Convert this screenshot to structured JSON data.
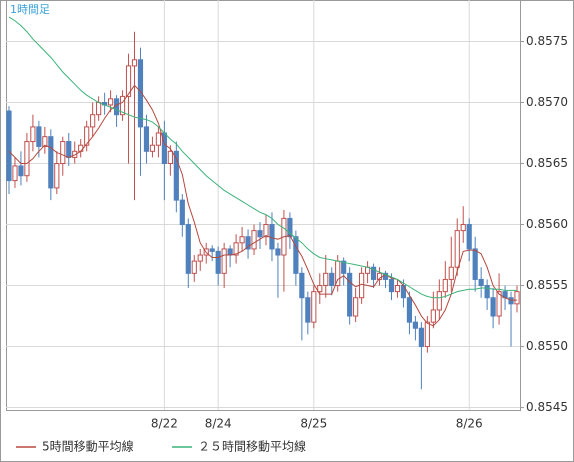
{
  "chart_data": {
    "type": "candlestick",
    "title": "1時間足",
    "categories": [
      null,
      null,
      null,
      null,
      null,
      null,
      null,
      null,
      null,
      null,
      null,
      null,
      null,
      null,
      null,
      null,
      null,
      null,
      null,
      null,
      null,
      null,
      null,
      null,
      null,
      null,
      "8/22",
      null,
      null,
      null,
      null,
      null,
      null,
      null,
      null,
      "8/24",
      null,
      null,
      null,
      null,
      null,
      null,
      null,
      null,
      null,
      null,
      null,
      null,
      null,
      null,
      null,
      "8/25",
      null,
      null,
      null,
      null,
      null,
      null,
      null,
      null,
      null,
      null,
      null,
      null,
      null,
      null,
      null,
      null,
      null,
      null,
      null,
      null,
      null,
      null,
      null,
      null,
      null,
      "8/26",
      null,
      null,
      null,
      null,
      null,
      null,
      null,
      null
    ],
    "open": [
      0.85693,
      0.85636,
      0.85648,
      0.8564,
      0.85668,
      0.8568,
      0.85664,
      0.85672,
      0.8563,
      0.8565,
      0.85668,
      0.85655,
      0.8566,
      0.85665,
      0.8568,
      0.8569,
      0.857,
      0.85698,
      0.85703,
      0.8569,
      0.85705,
      0.8573,
      0.85735,
      0.8568,
      0.8566,
      0.85665,
      0.85675,
      0.8565,
      0.8566,
      0.8562,
      0.856,
      0.8556,
      0.8557,
      0.85575,
      0.8558,
      0.85578,
      0.8556,
      0.8558,
      0.85575,
      0.85585,
      0.8559,
      0.8558,
      0.85595,
      0.8559,
      0.856,
      0.8558,
      0.85575,
      0.85605,
      0.8559,
      0.8556,
      0.8554,
      0.8552,
      0.85545,
      0.8555,
      0.8556,
      0.8555,
      0.8557,
      0.8556,
      0.85525,
      0.8554,
      0.8556,
      0.85565,
      0.85555,
      0.8556,
      0.85555,
      0.85545,
      0.8555,
      0.8554,
      0.8552,
      0.85515,
      0.855,
      0.8552,
      0.8553,
      0.85545,
      0.85555,
      0.85565,
      0.85595,
      0.856,
      0.8558,
      0.85555,
      0.8555,
      0.8554,
      0.85525,
      0.85545,
      0.8554,
      0.85535
    ],
    "high": [
      0.85697,
      0.85655,
      0.8566,
      0.85675,
      0.8569,
      0.85685,
      0.8568,
      0.85678,
      0.8566,
      0.85672,
      0.85675,
      0.85668,
      0.8567,
      0.85685,
      0.857,
      0.85705,
      0.85708,
      0.8571,
      0.85706,
      0.8571,
      0.8574,
      0.85758,
      0.85745,
      0.8569,
      0.85672,
      0.8568,
      0.85685,
      0.85665,
      0.85668,
      0.85625,
      0.85605,
      0.85575,
      0.8558,
      0.85585,
      0.85583,
      0.85582,
      0.85585,
      0.85583,
      0.85592,
      0.85598,
      0.85596,
      0.856,
      0.85602,
      0.85608,
      0.8561,
      0.85585,
      0.85612,
      0.8561,
      0.85595,
      0.85565,
      0.85545,
      0.8555,
      0.8556,
      0.85575,
      0.85565,
      0.85575,
      0.85573,
      0.85565,
      0.85548,
      0.85565,
      0.8557,
      0.85568,
      0.85565,
      0.85562,
      0.8556,
      0.85555,
      0.85555,
      0.85545,
      0.85525,
      0.8552,
      0.85525,
      0.85545,
      0.85555,
      0.8557,
      0.8559,
      0.85605,
      0.85615,
      0.85605,
      0.8559,
      0.85565,
      0.85555,
      0.85548,
      0.8556,
      0.8555,
      0.85545,
      0.8555
    ],
    "low": [
      0.85625,
      0.8563,
      0.85632,
      0.85635,
      0.8566,
      0.85655,
      0.85658,
      0.8562,
      0.85625,
      0.8564,
      0.85648,
      0.8565,
      0.85655,
      0.8566,
      0.85672,
      0.85685,
      0.8569,
      0.85692,
      0.8568,
      0.85685,
      0.8565,
      0.8562,
      0.8564,
      0.8565,
      0.85655,
      0.85655,
      0.8562,
      0.8564,
      0.8561,
      0.8559,
      0.85548,
      0.85553,
      0.85562,
      0.85568,
      0.8557,
      0.8555,
      0.85548,
      0.85565,
      0.85568,
      0.85578,
      0.85572,
      0.85575,
      0.8558,
      0.85583,
      0.8557,
      0.8554,
      0.85545,
      0.8558,
      0.8555,
      0.85505,
      0.8551,
      0.85515,
      0.85535,
      0.8554,
      0.85542,
      0.85545,
      0.8555,
      0.85518,
      0.8552,
      0.85535,
      0.85552,
      0.85548,
      0.8555,
      0.85548,
      0.85538,
      0.8554,
      0.85532,
      0.8551,
      0.85505,
      0.85465,
      0.85495,
      0.85515,
      0.85522,
      0.8554,
      0.85545,
      0.85558,
      0.85585,
      0.8557,
      0.85545,
      0.8554,
      0.8553,
      0.85515,
      0.85518,
      0.8553,
      0.855,
      0.85528
    ],
    "close": [
      0.85636,
      0.85648,
      0.8564,
      0.85668,
      0.8568,
      0.85664,
      0.85672,
      0.8563,
      0.8565,
      0.85668,
      0.85655,
      0.8566,
      0.85665,
      0.8568,
      0.8569,
      0.857,
      0.85698,
      0.85703,
      0.8569,
      0.85705,
      0.8573,
      0.85735,
      0.8568,
      0.8566,
      0.85665,
      0.85675,
      0.8565,
      0.8566,
      0.8562,
      0.856,
      0.8556,
      0.8557,
      0.85575,
      0.8558,
      0.85578,
      0.8556,
      0.8558,
      0.85575,
      0.85585,
      0.8559,
      0.8558,
      0.85595,
      0.8559,
      0.856,
      0.8558,
      0.85575,
      0.85605,
      0.8559,
      0.8556,
      0.8554,
      0.8552,
      0.85545,
      0.8555,
      0.8556,
      0.8555,
      0.8557,
      0.8556,
      0.85525,
      0.8554,
      0.8556,
      0.85565,
      0.85555,
      0.8556,
      0.85555,
      0.85545,
      0.8555,
      0.8554,
      0.8552,
      0.85515,
      0.855,
      0.8552,
      0.8553,
      0.85545,
      0.85555,
      0.85565,
      0.85595,
      0.856,
      0.8558,
      0.85555,
      0.8555,
      0.8554,
      0.85525,
      0.85545,
      0.8554,
      0.85535,
      0.85545
    ],
    "up_color": "#c0504d",
    "down_color": "#4f81bd",
    "series": [
      {
        "name": "5時間移動平均線",
        "color": "#b5483f",
        "values": [
          0.8566,
          0.85655,
          0.8565,
          0.8565,
          0.85654,
          0.8566,
          0.85665,
          0.85663,
          0.85659,
          0.85657,
          0.85655,
          0.85657,
          0.8566,
          0.85666,
          0.85672,
          0.85679,
          0.85687,
          0.85694,
          0.85698,
          0.857,
          0.85707,
          0.85714,
          0.85709,
          0.85702,
          0.85694,
          0.85683,
          0.85666,
          0.85662,
          0.85654,
          0.85641,
          0.85617,
          0.85602,
          0.85585,
          0.85577,
          0.85573,
          0.85573,
          0.85575,
          0.85575,
          0.85576,
          0.85578,
          0.85582,
          0.85585,
          0.85588,
          0.85591,
          0.85589,
          0.85588,
          0.8559,
          0.85591,
          0.85582,
          0.85574,
          0.85563,
          0.85551,
          0.85543,
          0.85543,
          0.85543,
          0.85555,
          0.85558,
          0.85553,
          0.85549,
          0.85551,
          0.8555,
          0.85549,
          0.85556,
          0.85559,
          0.85556,
          0.85555,
          0.8555,
          0.85542,
          0.85534,
          0.85525,
          0.85519,
          0.85517,
          0.85522,
          0.8553,
          0.85543,
          0.85562,
          0.85578,
          0.85579,
          0.85579,
          0.85576,
          0.85565,
          0.8555,
          0.85543,
          0.8554,
          0.85538,
          0.85538
        ]
      },
      {
        "name": "２５時間移動平均線",
        "color": "#3cb37a",
        "values": [
          0.8577,
          0.85767,
          0.85763,
          0.85758,
          0.85752,
          0.85747,
          0.85742,
          0.85737,
          0.85731,
          0.85725,
          0.8572,
          0.85715,
          0.8571,
          0.85706,
          0.85703,
          0.857,
          0.85698,
          0.85696,
          0.85694,
          0.85692,
          0.8569,
          0.85688,
          0.85687,
          0.85686,
          0.85684,
          0.8568,
          0.85675,
          0.8567,
          0.85666,
          0.8566,
          0.85655,
          0.8565,
          0.85645,
          0.8564,
          0.85636,
          0.85632,
          0.85628,
          0.85625,
          0.85622,
          0.85619,
          0.85616,
          0.85613,
          0.8561,
          0.85608,
          0.85605,
          0.856,
          0.85597,
          0.85593,
          0.85589,
          0.85585,
          0.8558,
          0.85576,
          0.85573,
          0.85572,
          0.85571,
          0.8557,
          0.85569,
          0.85568,
          0.85567,
          0.85566,
          0.85565,
          0.85563,
          0.85561,
          0.85559,
          0.85557,
          0.85555,
          0.85552,
          0.85549,
          0.85546,
          0.85543,
          0.85541,
          0.8554,
          0.8554,
          0.85541,
          0.85543,
          0.85545,
          0.85546,
          0.85547,
          0.85547,
          0.85548,
          0.85548,
          0.85547,
          0.85547,
          0.85546,
          0.85546,
          0.85546
        ]
      }
    ],
    "ylim": [
      0.85448,
      0.85784
    ],
    "yticks": [
      0.8545,
      {
        "value": 0.855,
        "label": "0.8550"
      },
      0.8555,
      {
        "value": 0.856,
        "label": "0.8560"
      },
      0.8565,
      {
        "value": 0.857,
        "label": "0.8570"
      },
      0.8575
    ],
    "grid": true
  }
}
